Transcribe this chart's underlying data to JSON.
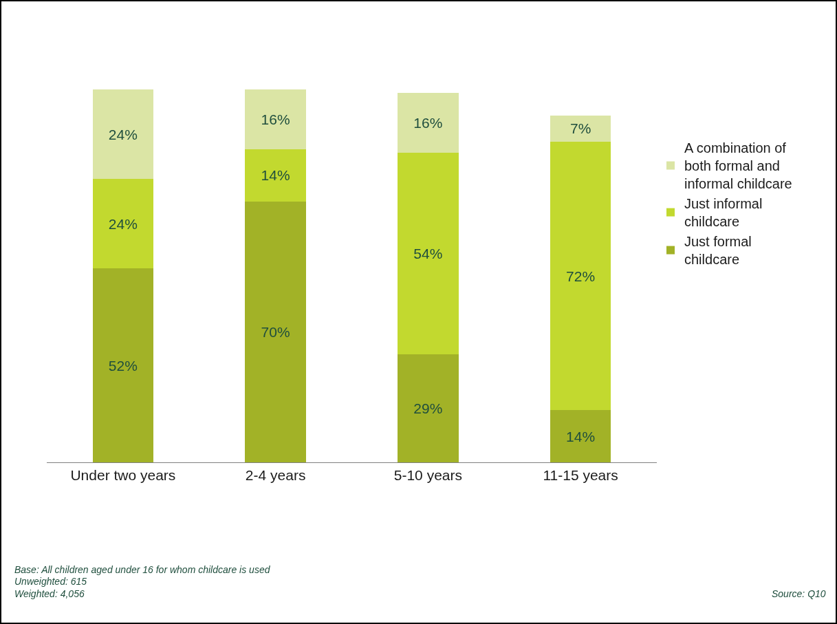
{
  "chart_data": {
    "type": "bar",
    "stacked": true,
    "categories": [
      "Under two years",
      "2-4 years",
      "5-10 years",
      "11-15 years"
    ],
    "series": [
      {
        "name": "Just formal childcare",
        "color": "#a2b227",
        "values": [
          52,
          70,
          29,
          14
        ],
        "value_labels": [
          "52%",
          "70%",
          "29%",
          "14%"
        ]
      },
      {
        "name": "Just informal childcare",
        "color": "#c2d92f",
        "values": [
          24,
          14,
          54,
          72
        ],
        "value_labels": [
          "24%",
          "14%",
          "54%",
          "72%"
        ]
      },
      {
        "name": "A combination of both formal and informal childcare",
        "color": "#dbe5a5",
        "values": [
          24,
          16,
          16,
          7
        ],
        "value_labels": [
          "24%",
          "16%",
          "16%",
          "7%"
        ]
      }
    ],
    "legend": "right",
    "annotations": [
      "Base: All children aged under 16 for whom childcare is used",
      "Unweighted: 615",
      "Weighted: 4,056",
      "Source: Q10"
    ]
  }
}
